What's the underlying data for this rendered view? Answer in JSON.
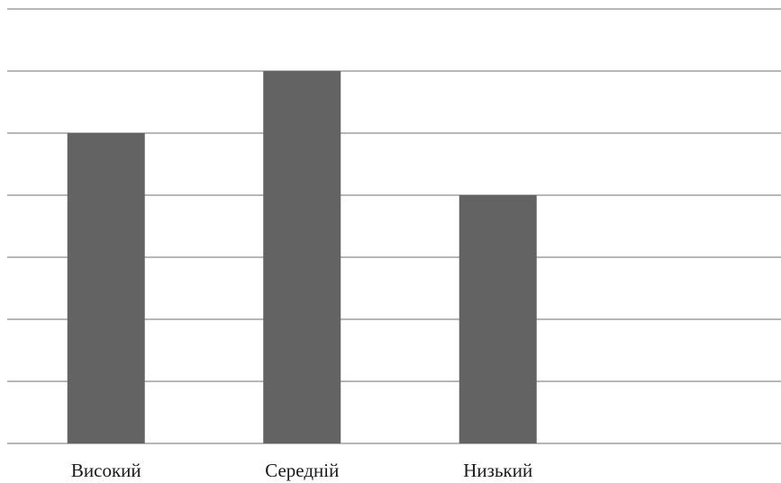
{
  "chart_data": {
    "type": "bar",
    "categories": [
      "Високий",
      "Середній",
      "Низький"
    ],
    "values": [
      5,
      6,
      4
    ],
    "ylim": [
      0,
      7
    ],
    "grid_step": 1,
    "grid": true,
    "legend": "none",
    "title": "",
    "xlabel": "",
    "ylabel": ""
  },
  "colors": {
    "bar": "#636363",
    "grid": "#8c8c8c"
  }
}
